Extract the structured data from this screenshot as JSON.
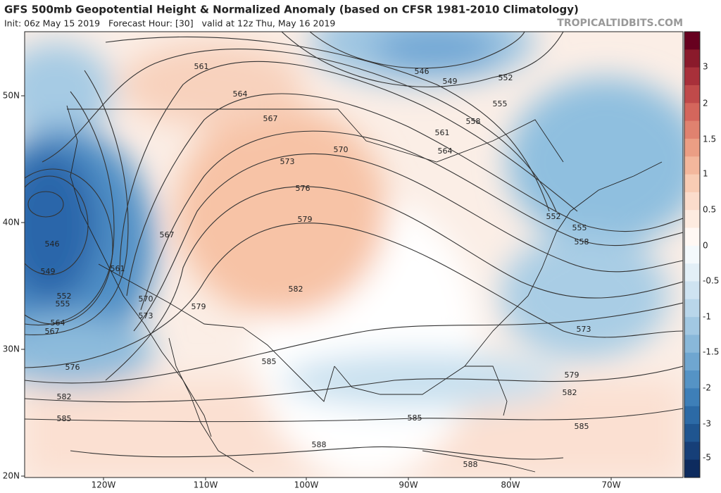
{
  "header": {
    "title": "GFS 500mb Geopotential Height & Normalized Anomaly (based on CFSR 1981-2010 Climatology)",
    "subtitle": "Init: 06z May 15 2019   Forecast Hour: [30]   valid at 12z Thu, May 16 2019",
    "source": "TROPICALTIDBITS.COM"
  },
  "map": {
    "lat_labels": [
      "50N",
      "40N",
      "30N",
      "20N"
    ],
    "lon_labels": [
      "120W",
      "110W",
      "100W",
      "90W",
      "80W",
      "70W"
    ],
    "contour_labels": [
      "561",
      "564",
      "567",
      "570",
      "573",
      "576",
      "579",
      "582",
      "585",
      "588",
      "588",
      "546",
      "549",
      "552",
      "555",
      "558",
      "561",
      "564",
      "552",
      "555",
      "558",
      "573",
      "579",
      "582",
      "585",
      "585",
      "585",
      "582",
      "576",
      "567",
      "564",
      "555",
      "552",
      "549",
      "546",
      "567",
      "561",
      "570",
      "573",
      "579"
    ]
  },
  "colorbar": {
    "labels": [
      "3",
      "2",
      "1.5",
      "1",
      "0.5",
      "0",
      "-0.5",
      "-1",
      "-1.5",
      "-2",
      "-3",
      "-5"
    ]
  }
}
